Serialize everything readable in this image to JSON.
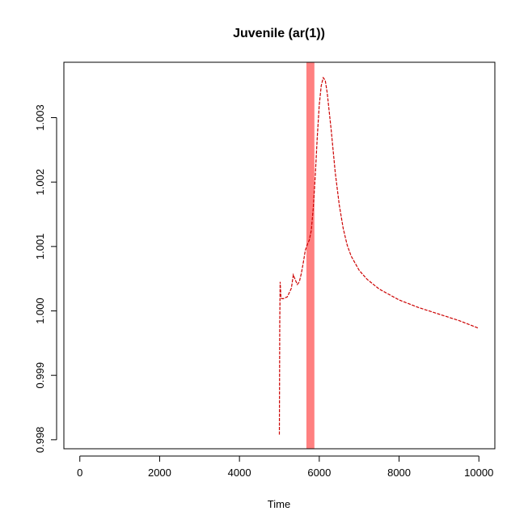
{
  "chart_data": {
    "type": "line",
    "title": "Juvenile (ar(1))",
    "xlabel": "Time",
    "ylabel": "",
    "xlim": [
      -400,
      10400
    ],
    "ylim": [
      0.99786,
      1.00386
    ],
    "x_ticks": [
      0,
      2000,
      4000,
      6000,
      8000,
      10000
    ],
    "x_tick_labels": [
      "0",
      "2000",
      "4000",
      "6000",
      "8000",
      "10000"
    ],
    "y_ticks": [
      0.998,
      0.999,
      1.0,
      1.001,
      1.002,
      1.003
    ],
    "y_tick_labels": [
      "0.998",
      "0.999",
      "1.000",
      "1.001",
      "1.002",
      "1.003"
    ],
    "grid": false,
    "band": {
      "x": 5778,
      "width_data": 200,
      "color": "#ff8080"
    },
    "series": [
      {
        "color": "#cc0000",
        "style": "dashed",
        "x": [
          5000,
          5010,
          5020,
          5040,
          5060,
          5100,
          5200,
          5300,
          5350,
          5400,
          5450,
          5500,
          5550,
          5600,
          5650,
          5700,
          5750,
          5800,
          5850,
          5900,
          5950,
          6000,
          6050,
          6100,
          6150,
          6200,
          6300,
          6400,
          6500,
          6600,
          6700,
          6800,
          7000,
          7200,
          7500,
          8000,
          8500,
          9000,
          9500,
          10000
        ],
        "y": [
          0.99808,
          0.99983,
          1.00045,
          1.0002,
          1.00019,
          1.00019,
          1.00022,
          1.00035,
          1.00056,
          1.00048,
          1.00041,
          1.00045,
          1.00058,
          1.00075,
          1.00094,
          1.00103,
          1.0011,
          1.00125,
          1.0016,
          1.0021,
          1.0027,
          1.0032,
          1.0035,
          1.00362,
          1.00358,
          1.00338,
          1.0028,
          1.00215,
          1.00165,
          1.00128,
          1.00102,
          1.00085,
          1.00063,
          1.00049,
          1.00034,
          1.00017,
          1.00005,
          0.99995,
          0.99985,
          0.99973
        ]
      }
    ]
  }
}
